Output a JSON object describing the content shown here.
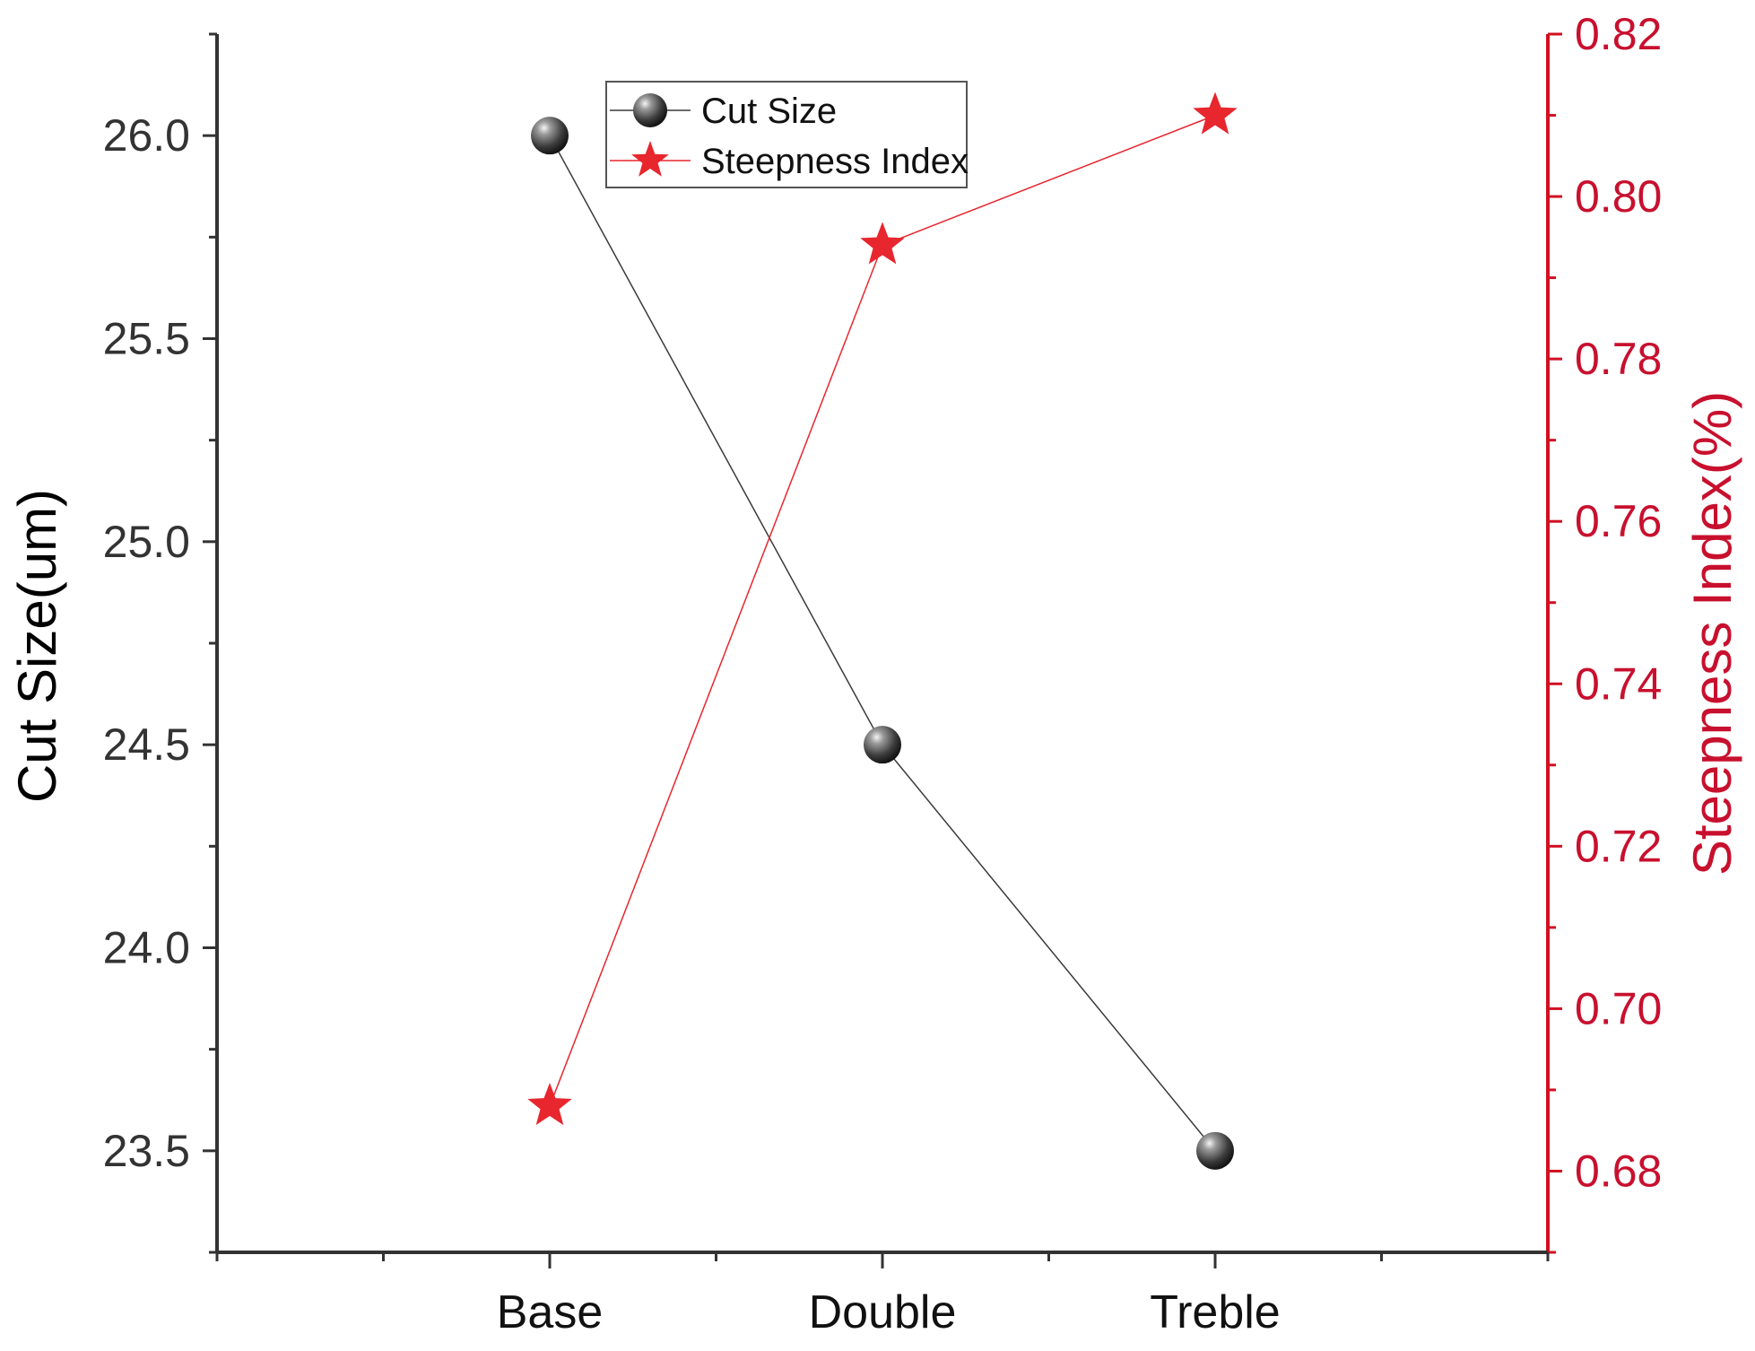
{
  "chart_data": {
    "type": "line",
    "categories": [
      "Base",
      "Double",
      "Treble"
    ],
    "series": [
      {
        "name": "Cut Size",
        "axis": "left",
        "values": [
          26.0,
          24.5,
          23.5
        ],
        "color": "#3a3a3a",
        "marker": "sphere"
      },
      {
        "name": "Steepness Index",
        "axis": "right",
        "values": [
          0.688,
          0.794,
          0.81
        ],
        "color": "#e8262e",
        "marker": "star"
      }
    ],
    "y_left": {
      "label": "Cut Size(um)",
      "ticks": [
        "23.5",
        "24.0",
        "24.5",
        "25.0",
        "25.5",
        "26.0"
      ],
      "range": [
        23.25,
        26.25
      ],
      "color": "#000000"
    },
    "y_right": {
      "label": "Steepness Index(%)",
      "ticks": [
        "0.68",
        "0.70",
        "0.72",
        "0.74",
        "0.76",
        "0.78",
        "0.80",
        "0.82"
      ],
      "range": [
        0.67,
        0.82
      ],
      "color": "#c8102e"
    },
    "grid": false,
    "legend_position": "top-center"
  }
}
